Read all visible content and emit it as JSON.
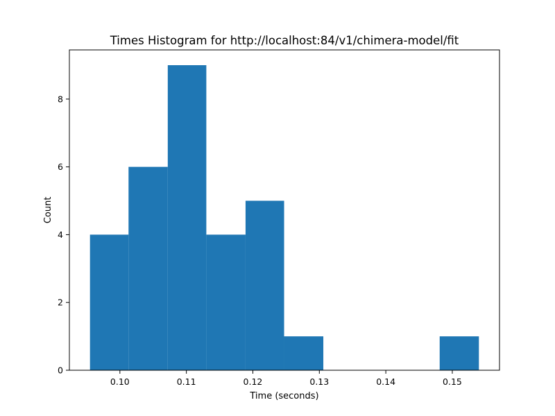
{
  "chart_data": {
    "type": "bar",
    "title": "Times Histogram for http://localhost:84/v1/chimera-model/fit",
    "xlabel": "Time (seconds)",
    "ylabel": "Count",
    "xlim": [
      0.0924,
      0.1571
    ],
    "ylim": [
      0,
      9.45
    ],
    "grid": false,
    "legend": "none",
    "bar_color": "#1f77b4",
    "bins": [
      {
        "start": 0.0955,
        "end": 0.1013,
        "count": 4
      },
      {
        "start": 0.1013,
        "end": 0.1072,
        "count": 6
      },
      {
        "start": 0.1072,
        "end": 0.113,
        "count": 9
      },
      {
        "start": 0.113,
        "end": 0.1189,
        "count": 4
      },
      {
        "start": 0.1189,
        "end": 0.1247,
        "count": 5
      },
      {
        "start": 0.1247,
        "end": 0.1306,
        "count": 1
      },
      {
        "start": 0.1306,
        "end": 0.1364,
        "count": 0
      },
      {
        "start": 0.1364,
        "end": 0.1423,
        "count": 0
      },
      {
        "start": 0.1423,
        "end": 0.1481,
        "count": 0
      },
      {
        "start": 0.1481,
        "end": 0.154,
        "count": 1
      }
    ],
    "xticks": [
      {
        "value": 0.1,
        "label": "0.10"
      },
      {
        "value": 0.11,
        "label": "0.11"
      },
      {
        "value": 0.12,
        "label": "0.12"
      },
      {
        "value": 0.13,
        "label": "0.13"
      },
      {
        "value": 0.14,
        "label": "0.14"
      },
      {
        "value": 0.15,
        "label": "0.15"
      }
    ],
    "yticks": [
      {
        "value": 0,
        "label": "0"
      },
      {
        "value": 2,
        "label": "2"
      },
      {
        "value": 4,
        "label": "4"
      },
      {
        "value": 6,
        "label": "6"
      },
      {
        "value": 8,
        "label": "8"
      }
    ]
  }
}
